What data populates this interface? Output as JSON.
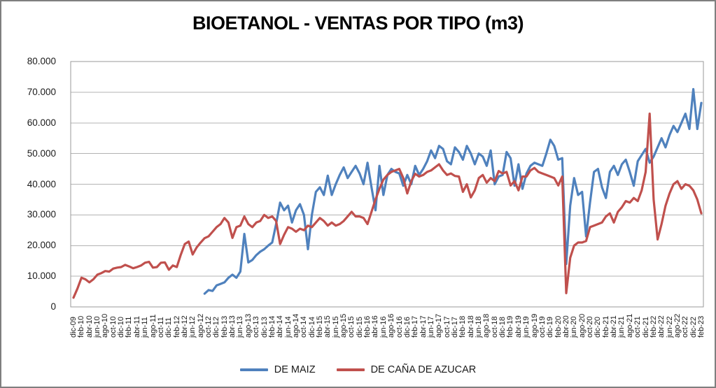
{
  "chart_data": {
    "type": "line",
    "title": "BIOETANOL - VENTAS POR TIPO (m3)",
    "x_unit": "month",
    "x_start": "dic-09",
    "x_end": "feb-23",
    "ylim": [
      0,
      80000
    ],
    "grid": true,
    "legend_position": "bottom",
    "y_tick_labels": [
      "80.000",
      "70.000",
      "60.000",
      "50.000",
      "40.000",
      "30.000",
      "20.000",
      "10.000",
      "0"
    ],
    "x_tick_labels": [
      "dic-09",
      "feb-10",
      "abr-10",
      "jun-10",
      "ago-10",
      "oct-10",
      "dic-10",
      "feb-11",
      "abr-11",
      "jun-11",
      "ago-11",
      "oct-11",
      "dic-11",
      "feb-12",
      "abr-12",
      "jun-12",
      "ago-12",
      "oct-12",
      "dic-12",
      "feb-13",
      "abr-13",
      "jun-13",
      "ago-13",
      "oct-13",
      "dic-13",
      "feb-14",
      "abr-14",
      "jun-14",
      "ago-14",
      "oct-14",
      "dic-14",
      "feb-15",
      "abr-15",
      "jun-15",
      "ago-15",
      "oct-15",
      "dic-15",
      "feb-16",
      "abr-16",
      "jun-16",
      "ago-16",
      "oct-16",
      "dic-16",
      "feb-17",
      "abr-17",
      "jun-17",
      "ago-17",
      "oct-17",
      "dic-17",
      "feb-18",
      "abr-18",
      "jun-18",
      "ago-18",
      "oct-18",
      "dic-18",
      "feb-19",
      "abr-19",
      "jun-19",
      "ago-19",
      "oct-19",
      "dic-19",
      "feb-20",
      "abr-20",
      "jun-20",
      "ago-20",
      "oct-20",
      "dic-20",
      "feb-21",
      "abr-21",
      "jun-21",
      "ago-21",
      "oct-21",
      "dic-21",
      "feb-22",
      "abr-22",
      "jun-22",
      "ago-22",
      "oct-22",
      "dic-22",
      "feb-23"
    ],
    "series": [
      {
        "name": "DE MAIZ",
        "color": "#4F81BD",
        "values": [
          null,
          null,
          null,
          null,
          null,
          null,
          null,
          null,
          null,
          null,
          null,
          null,
          null,
          null,
          null,
          null,
          null,
          null,
          null,
          null,
          null,
          null,
          null,
          null,
          null,
          null,
          null,
          null,
          null,
          null,
          null,
          null,
          null,
          4300,
          5500,
          5200,
          7000,
          7500,
          8000,
          9500,
          10500,
          9500,
          11500,
          23800,
          14500,
          15300,
          16900,
          18000,
          18800,
          20000,
          21000,
          27000,
          34000,
          31500,
          33000,
          27500,
          31500,
          33500,
          30000,
          18800,
          30000,
          37500,
          39000,
          36500,
          42800,
          36500,
          40000,
          43000,
          45500,
          42000,
          44000,
          46000,
          43500,
          40000,
          47000,
          39000,
          31500,
          46000,
          36500,
          43000,
          45000,
          44000,
          43500,
          39500,
          43000,
          40000,
          46000,
          43000,
          45000,
          47500,
          51000,
          48500,
          52500,
          51500,
          47500,
          46500,
          52000,
          50500,
          48000,
          52500,
          50000,
          46500,
          50000,
          49000,
          46000,
          51000,
          40000,
          42500,
          43000,
          50500,
          48500,
          39500,
          46500,
          38500,
          43500,
          46000,
          47000,
          46500,
          46000,
          50000,
          54500,
          52500,
          48000,
          48500,
          14000,
          33000,
          42000,
          36500,
          37500,
          23000,
          34000,
          44000,
          45000,
          39000,
          35500,
          44000,
          46000,
          43000,
          46500,
          48000,
          44000,
          39500,
          47500,
          49500,
          51500,
          47000,
          49000,
          52000,
          55000,
          52000,
          56000,
          59000,
          57000,
          60000,
          63000,
          58000,
          71000,
          58000,
          66500
        ]
      },
      {
        "name": "DE CAÑA DE AZUCAR",
        "color": "#C0504D",
        "values": [
          3000,
          6000,
          9500,
          9000,
          8000,
          9000,
          10500,
          11000,
          11700,
          11500,
          12500,
          12800,
          13000,
          13700,
          13200,
          12600,
          13000,
          13500,
          14400,
          14700,
          12800,
          13000,
          14400,
          14500,
          12100,
          13500,
          13000,
          17000,
          20500,
          21300,
          17100,
          19400,
          21000,
          22400,
          23000,
          24500,
          26000,
          27000,
          29000,
          27500,
          22500,
          26000,
          26500,
          29500,
          27000,
          26000,
          27500,
          28000,
          30000,
          29000,
          29500,
          28000,
          20500,
          23500,
          26000,
          25500,
          24500,
          25500,
          25000,
          26500,
          26000,
          27500,
          29000,
          28000,
          26500,
          27500,
          26500,
          27000,
          28000,
          29500,
          31000,
          29500,
          29500,
          29000,
          27000,
          31000,
          35000,
          38500,
          41500,
          43000,
          44000,
          44500,
          45000,
          42000,
          37000,
          41000,
          43400,
          42500,
          43000,
          44000,
          44500,
          45500,
          46500,
          44500,
          43000,
          43500,
          42700,
          42500,
          37500,
          40000,
          35700,
          38000,
          42000,
          43000,
          40500,
          42000,
          41000,
          44300,
          43500,
          44000,
          39600,
          41000,
          38000,
          42500,
          42500,
          44500,
          45300,
          44000,
          43500,
          43000,
          42500,
          42000,
          39600,
          42500,
          4500,
          16000,
          20000,
          21000,
          21000,
          21500,
          26000,
          26500,
          27000,
          27500,
          29500,
          30500,
          27500,
          31000,
          32500,
          34500,
          34000,
          35500,
          34500,
          38000,
          44000,
          63000,
          35000,
          22000,
          27000,
          33000,
          37000,
          40000,
          41000,
          38500,
          40000,
          39500,
          38000,
          35000,
          30500
        ]
      }
    ]
  }
}
